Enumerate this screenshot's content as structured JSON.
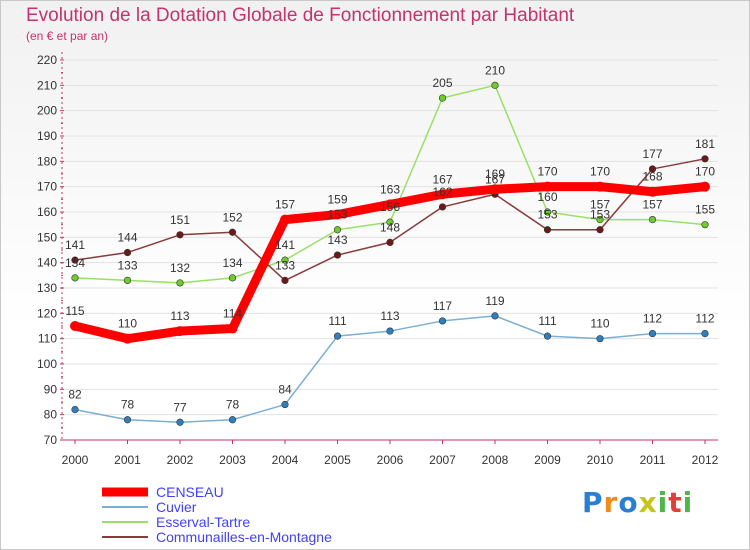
{
  "title": "Evolution de la Dotation Globale de Fonctionnement par Habitant",
  "subtitle": "(en € et par an)",
  "logo": {
    "text": "Proxiti",
    "colors": [
      "#2a7fd4",
      "#f08c1c",
      "#2a7fd4",
      "#c7c51c",
      "#4db848",
      "#e0403a",
      "#4db848"
    ]
  },
  "chart_data": {
    "type": "line",
    "title": "Evolution de la Dotation Globale de Fonctionnement par Habitant",
    "subtitle": "(en € et par an)",
    "x": [
      "2000",
      "2001",
      "2002",
      "2003",
      "2004",
      "2005",
      "2006",
      "2007",
      "2008",
      "2009",
      "2010",
      "2011",
      "2012"
    ],
    "ylim": [
      70,
      220
    ],
    "yticks": [
      70,
      80,
      90,
      100,
      110,
      120,
      130,
      140,
      150,
      160,
      170,
      180,
      190,
      200,
      210,
      220
    ],
    "grid": "horizontal",
    "legend_position": "bottom-left",
    "series": [
      {
        "name": "CENSEAU",
        "color": "#ff0000",
        "marker_color": "#ff0000",
        "thick": true,
        "values": [
          115,
          110,
          113,
          114,
          157,
          159,
          163,
          167,
          169,
          170,
          170,
          168,
          170
        ],
        "labels": [
          "115",
          "110",
          "113",
          "114",
          "157",
          "159",
          "163",
          "167",
          "169",
          "170",
          "170",
          "168",
          "170"
        ]
      },
      {
        "name": "Cuvier",
        "color": "#7bafd4",
        "marker_color": "#2f7fc0",
        "thick": false,
        "values": [
          82,
          78,
          77,
          78,
          84,
          111,
          113,
          117,
          119,
          111,
          110,
          112,
          112
        ],
        "labels": [
          "82",
          "78",
          "77",
          "78",
          "84",
          "111",
          "113",
          "117",
          "119",
          "111",
          "110",
          "112",
          "112"
        ]
      },
      {
        "name": "Esserval-Tartre",
        "color": "#99e066",
        "marker_color": "#6ccc2a",
        "thick": false,
        "values": [
          134,
          133,
          132,
          134,
          141,
          153,
          156,
          205,
          210,
          160,
          157,
          157,
          155
        ],
        "labels": [
          "134",
          "133",
          "132",
          "134",
          "141",
          "153",
          "156",
          "205",
          "210",
          "160",
          "157",
          "157",
          "155"
        ]
      },
      {
        "name": "Communailles-en-Montagne",
        "color": "#8a3a3a",
        "marker_color": "#6b1a1a",
        "thick": false,
        "values": [
          141,
          144,
          151,
          152,
          133,
          143,
          148,
          162,
          167,
          153,
          153,
          177,
          181
        ],
        "labels": [
          "141",
          "144",
          "151",
          "152",
          "133",
          "143",
          "148",
          "162",
          "167",
          "153",
          "153",
          "177",
          "181"
        ]
      }
    ]
  }
}
